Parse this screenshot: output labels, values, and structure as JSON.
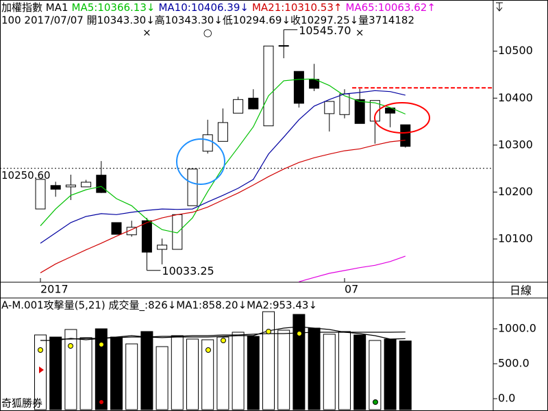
{
  "chart_data": [
    {
      "type": "candlestick",
      "title": "加權指數 MA1",
      "subtitle": "100 2017/07/07 開10343.30↓高10343.30↓低10294.69↓收10297.25↓量3714182",
      "categories": [
        "2017",
        null,
        null,
        null,
        null,
        null,
        null,
        null,
        null,
        null,
        null,
        null,
        null,
        null,
        null,
        null,
        null,
        null,
        null,
        null,
        "07",
        null,
        null,
        null,
        null
      ],
      "open": [
        10164,
        10214,
        10211,
        10211,
        10236,
        10135,
        10109,
        10139,
        10078,
        10078,
        10171,
        10287,
        10308,
        10368,
        10400,
        10341,
        10512,
        10457,
        10440,
        10367,
        10365,
        10397,
        10351,
        10379,
        10343.3
      ],
      "high": [
        10227,
        10222,
        10237,
        10226,
        10266,
        10135,
        10139,
        10145,
        10101,
        10152,
        10249,
        10354,
        10378,
        10403,
        10419,
        10511,
        10545.7,
        10457,
        10473,
        10393,
        10419,
        10420,
        10395,
        10379,
        10343.3
      ],
      "low": [
        10164,
        10190,
        10183,
        10211,
        10198,
        10110,
        10105,
        10033.25,
        10046,
        10078,
        10171,
        10282,
        10308,
        10368,
        10376,
        10341,
        10485,
        10380,
        10415,
        10329,
        10357,
        10346,
        10303,
        10338,
        10294.69
      ],
      "close": [
        10227,
        10206,
        10215,
        10221,
        10199,
        10110,
        10125,
        10072,
        10087,
        10152,
        10249,
        10322,
        10348,
        10397,
        10377,
        10511,
        10512,
        10389,
        10421,
        10393,
        10409,
        10346,
        10395,
        10368,
        10297.25
      ],
      "up_color": "#ffffff",
      "down_color": "#000000",
      "series": [
        {
          "name": "MA5:10366.13↓",
          "color": "#00c000",
          "values": [
            10128,
            10164,
            10193,
            10205,
            10212,
            10186,
            10171,
            10142,
            10120,
            10113,
            10145,
            10201,
            10252,
            10295,
            10339,
            10405,
            10437,
            10440,
            10441,
            10427,
            10405,
            10393,
            10390,
            10380,
            10366.13
          ]
        },
        {
          "name": "MA10:10406.39↓",
          "color": "#0000a0",
          "values": [
            10091,
            10113,
            10135,
            10148,
            10154,
            10152,
            10157,
            10161,
            10164,
            10163,
            10164,
            10179,
            10193,
            10208,
            10227,
            10281,
            10317,
            10354,
            10383,
            10397,
            10409,
            10412,
            10416,
            10414,
            10406.39
          ]
        },
        {
          "name": "MA21:10310.53↑",
          "color": "#d00000",
          "values": [
            10028,
            10047,
            10062,
            10077,
            10091,
            10106,
            10120,
            10135,
            10145,
            10152,
            10157,
            10168,
            10183,
            10198,
            10215,
            10233,
            10249,
            10263,
            10273,
            10281,
            10288,
            10292,
            10300,
            10307,
            10310.53
          ]
        },
        {
          "name": "MA65:10063.62↑",
          "color": "#e000e0",
          "values": [
            null,
            null,
            null,
            null,
            null,
            null,
            null,
            null,
            null,
            null,
            null,
            null,
            null,
            null,
            null,
            null,
            null,
            10009,
            10018,
            10027,
            10033,
            10039,
            10044,
            10052,
            10063.62
          ]
        }
      ],
      "ylim": [
        10008,
        10609
      ],
      "yticks": [
        10100,
        10200,
        10300,
        10400,
        10500
      ],
      "annotations": [
        {
          "value": 10545.7,
          "label": "10545.70",
          "index": 16
        },
        {
          "value": 10033.25,
          "label": "10033.25",
          "index": 7
        }
      ],
      "reference_lines": [
        {
          "value": 10250.6,
          "label": "10250.60",
          "color": "#000000",
          "style": "dotted"
        },
        {
          "value": 10422,
          "color": "#ff0000",
          "style": "dashed",
          "from_index": 21
        }
      ],
      "markers": [
        {
          "label": "×",
          "index": 7,
          "color": "#ff0000"
        },
        {
          "label": "○",
          "index": 11,
          "color": "#ff0000"
        },
        {
          "label": "×",
          "index": 21,
          "color": "#ff0000"
        }
      ]
    },
    {
      "type": "bar",
      "title": "A-M.001攻擊量(5,21) 成交量_:826↓MA1:858.20↓MA2:953.43↓",
      "values": [
        912,
        882,
        990,
        873,
        1000,
        882,
        784,
        961,
        745,
        902,
        853,
        843,
        882,
        951,
        892,
        1245,
        980,
        1206,
        1010,
        922,
        961,
        912,
        833,
        853,
        826
      ],
      "up_color": "#ffffff",
      "down_color": "#000000",
      "series": [
        {
          "color": "#000000",
          "values": [
            833,
            833,
            863,
            843,
            863,
            882,
            902,
            882,
            873,
            882,
            882,
            882,
            892,
            902,
            902,
            971,
            1010,
            1029,
            1010,
            990,
            951,
            931,
            902,
            853,
            858.2
          ]
        },
        {
          "color": "#000000",
          "values": [
            null,
            853,
            853,
            863,
            863,
            873,
            882,
            882,
            892,
            892,
            902,
            902,
            912,
            912,
            922,
            931,
            931,
            941,
            951,
            951,
            951,
            951,
            951,
            951,
            953.43
          ]
        }
      ],
      "ylim": [
        -157,
        1441
      ],
      "yticks": [
        {
          "value": 1000,
          "label": "1000.0"
        },
        {
          "value": 500,
          "label": "500.0"
        },
        {
          "value": 0,
          "label": "0.0"
        }
      ]
    }
  ],
  "period_label": "日線",
  "footer": "奇狐勝券"
}
